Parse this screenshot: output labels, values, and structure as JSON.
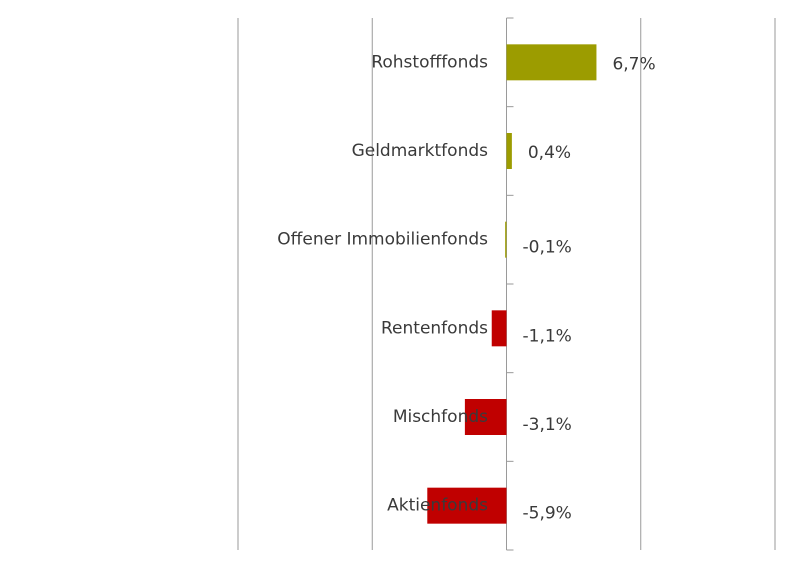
{
  "chart_data": {
    "type": "bar",
    "orientation": "horizontal",
    "categories": [
      "Rohstofffonds",
      "Geldmarktfonds",
      "Offener Immobilienfonds",
      "Rentenfonds",
      "Mischfonds",
      "Aktienfonds"
    ],
    "values": [
      6.7,
      0.4,
      -0.1,
      -1.1,
      -3.1,
      -5.9
    ],
    "value_labels": [
      "6,7%",
      "0,4%",
      "-0,1%",
      "-1,1%",
      "-3,1%",
      "-5,9%"
    ],
    "colors": [
      "#9c9c00",
      "#9c9c00",
      "#9c9c00",
      "#c00000",
      "#c00000",
      "#c00000"
    ],
    "xlim": [
      -20,
      20
    ],
    "xgrid": [
      -20,
      -10,
      0,
      10,
      20
    ],
    "grid": true
  }
}
